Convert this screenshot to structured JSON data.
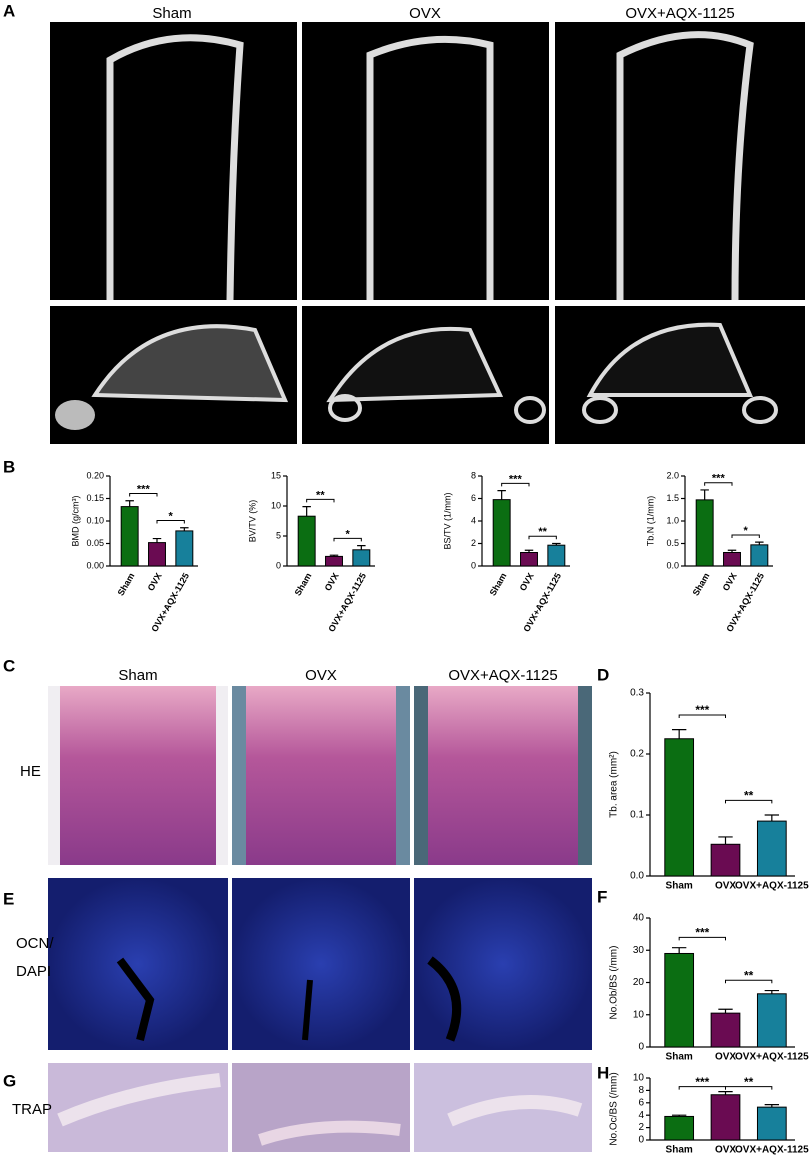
{
  "panel_labels": [
    "A",
    "B",
    "C",
    "D",
    "E",
    "F",
    "G",
    "H"
  ],
  "microct": {
    "groups": [
      "Sham",
      "OVX",
      "OVX+AQX-1125"
    ]
  },
  "histology": {
    "groups": [
      "Sham",
      "OVX",
      "OVX+AQX-1125"
    ],
    "rows": [
      [
        "HE"
      ],
      [
        "OCN/",
        "DAPI"
      ],
      [
        "TRAP"
      ]
    ]
  },
  "chart_data": [
    {
      "type": "bar",
      "ylabel": "BMD (g/cm³)",
      "categories": [
        "Sham",
        "OVX",
        "OVX+AQX-1125"
      ],
      "values": [
        0.132,
        0.052,
        0.078
      ],
      "errors": [
        0.013,
        0.009,
        0.007
      ],
      "colors": [
        "#0b6e12",
        "#6a0b52",
        "#17809b"
      ],
      "ylim": [
        0,
        0.2
      ],
      "yticks": [
        {
          "value": 0,
          "label": "0.00"
        },
        {
          "value": 0.05,
          "label": "0.05"
        },
        {
          "value": 0.1,
          "label": "0.10"
        },
        {
          "value": 0.15,
          "label": "0.15"
        },
        {
          "value": 0.2,
          "label": "0.20"
        }
      ],
      "annotations": [
        {
          "text": "***",
          "pair": [
            0,
            1
          ]
        },
        {
          "text": "*",
          "pair": [
            1,
            2
          ]
        }
      ]
    },
    {
      "type": "bar",
      "ylabel": "BV/TV (%)",
      "categories": [
        "Sham",
        "OVX",
        "OVX+AQX-1125"
      ],
      "values": [
        8.3,
        1.6,
        2.7
      ],
      "errors": [
        1.6,
        0.2,
        0.7
      ],
      "colors": [
        "#0b6e12",
        "#6a0b52",
        "#17809b"
      ],
      "ylim": [
        0,
        15
      ],
      "yticks": [
        0,
        5,
        10,
        15
      ],
      "annotations": [
        {
          "text": "**",
          "pair": [
            0,
            1
          ]
        },
        {
          "text": "*",
          "pair": [
            1,
            2
          ]
        }
      ]
    },
    {
      "type": "bar",
      "ylabel": "BS/TV (1/mm)",
      "categories": [
        "Sham",
        "OVX",
        "OVX+AQX-1125"
      ],
      "values": [
        5.9,
        1.2,
        1.85
      ],
      "errors": [
        0.8,
        0.2,
        0.15
      ],
      "colors": [
        "#0b6e12",
        "#6a0b52",
        "#17809b"
      ],
      "ylim": [
        0,
        8
      ],
      "yticks": [
        0,
        2,
        4,
        6,
        8
      ],
      "annotations": [
        {
          "text": "***",
          "pair": [
            0,
            1
          ]
        },
        {
          "text": "**",
          "pair": [
            1,
            2
          ]
        }
      ]
    },
    {
      "type": "bar",
      "ylabel": "Tb.N (1/mm)",
      "categories": [
        "Sham",
        "OVX",
        "OVX+AQX-1125"
      ],
      "values": [
        1.47,
        0.3,
        0.47
      ],
      "errors": [
        0.22,
        0.05,
        0.06
      ],
      "colors": [
        "#0b6e12",
        "#6a0b52",
        "#17809b"
      ],
      "ylim": [
        0,
        2
      ],
      "yticks": [
        {
          "value": 0,
          "label": "0.0"
        },
        0.5,
        {
          "value": 1,
          "label": "1.0"
        },
        1.5,
        {
          "value": 2,
          "label": "2.0"
        }
      ],
      "annotations": [
        {
          "text": "***",
          "pair": [
            0,
            1
          ]
        },
        {
          "text": "*",
          "pair": [
            1,
            2
          ]
        }
      ]
    },
    {
      "type": "bar",
      "ylabel": "Tb. area (mm²)",
      "categories": [
        "Sham",
        "OVX",
        "OVX+AQX-1125"
      ],
      "values": [
        0.225,
        0.052,
        0.09
      ],
      "errors": [
        0.015,
        0.012,
        0.01
      ],
      "colors": [
        "#0b6e12",
        "#6a0b52",
        "#17809b"
      ],
      "ylim": [
        0,
        0.3
      ],
      "yticks": [
        {
          "value": 0,
          "label": "0.0"
        },
        0.1,
        0.2,
        0.3
      ],
      "annotations": [
        {
          "text": "***",
          "pair": [
            0,
            1
          ]
        },
        {
          "text": "**",
          "pair": [
            1,
            2
          ]
        }
      ]
    },
    {
      "type": "bar",
      "ylabel": "No.Ob/BS (/mm)",
      "categories": [
        "Sham",
        "OVX",
        "OVX+AQX-1125"
      ],
      "values": [
        29,
        10.5,
        16.5
      ],
      "errors": [
        1.8,
        1.2,
        1
      ],
      "colors": [
        "#0b6e12",
        "#6a0b52",
        "#17809b"
      ],
      "ylim": [
        0,
        40
      ],
      "yticks": [
        0,
        10,
        20,
        30,
        40
      ],
      "annotations": [
        {
          "text": "***",
          "pair": [
            0,
            1
          ]
        },
        {
          "text": "**",
          "pair": [
            1,
            2
          ]
        }
      ]
    },
    {
      "type": "bar",
      "ylabel": "No.Oc/BS (/mm)",
      "categories": [
        "Sham",
        "OVX",
        "OVX+AQX-1125"
      ],
      "values": [
        3.8,
        7.3,
        5.3
      ],
      "errors": [
        0.2,
        0.5,
        0.4
      ],
      "colors": [
        "#0b6e12",
        "#6a0b52",
        "#17809b"
      ],
      "ylim": [
        0,
        10
      ],
      "yticks": [
        0,
        2,
        4,
        6,
        8,
        10
      ],
      "annotations": [
        {
          "text": "***",
          "pair": [
            0,
            1
          ]
        },
        {
          "text": "**",
          "pair": [
            1,
            2
          ]
        }
      ]
    }
  ]
}
